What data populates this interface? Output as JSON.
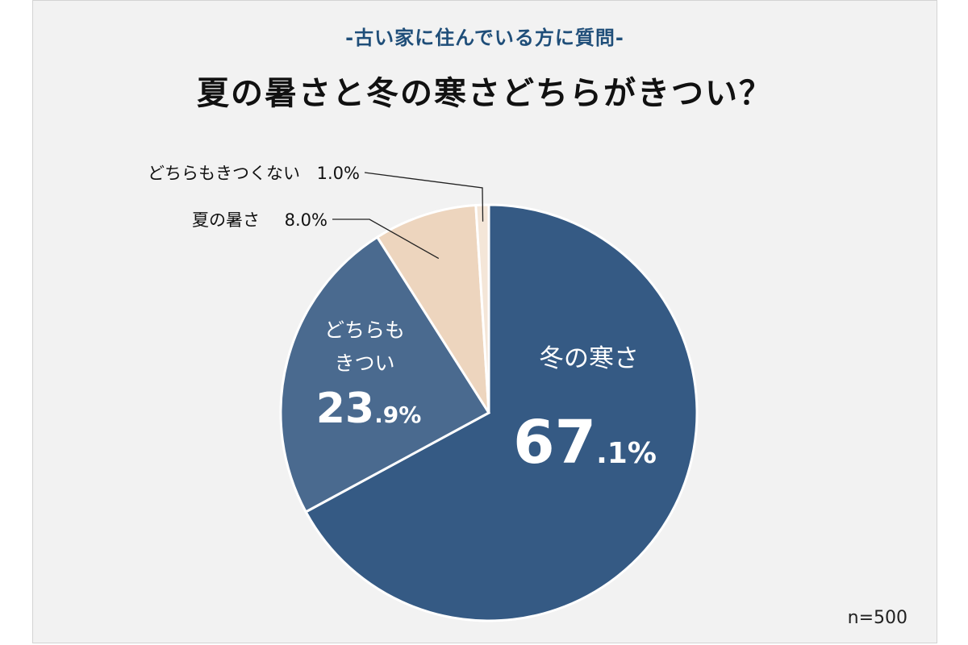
{
  "header": {
    "subtitle": "-古い家に住んでいる方に質問-",
    "title": "夏の暑さと冬の寒さどちらがきつい？"
  },
  "sample": "n=500",
  "colors": {
    "background": "#f2f2f2",
    "winter": "#355a84",
    "both": "#4a6a8f",
    "summer": "#edd5be",
    "neither": "#f4e6d8",
    "subtitle": "#1f4e79"
  },
  "chart_data": {
    "type": "pie",
    "title": "夏の暑さと冬の寒さどちらがきつい？",
    "start": "12 o'clock, clockwise",
    "slices": [
      {
        "label": "冬の寒さ",
        "value": 67.1,
        "int_text": "67",
        "dec_text": ".1%",
        "color": "#355a84"
      },
      {
        "label_lines": [
          "どちらも",
          "きつい"
        ],
        "value": 23.9,
        "int_text": "23",
        "dec_text": ".9%",
        "color": "#4a6a8f"
      },
      {
        "label": "夏の暑さ",
        "value": 8.0,
        "value_text": "8.0%",
        "color": "#edd5be"
      },
      {
        "label": "どちらもきつくない",
        "value": 1.0,
        "value_text": "1.0%",
        "color": "#f4e6d8"
      }
    ]
  }
}
